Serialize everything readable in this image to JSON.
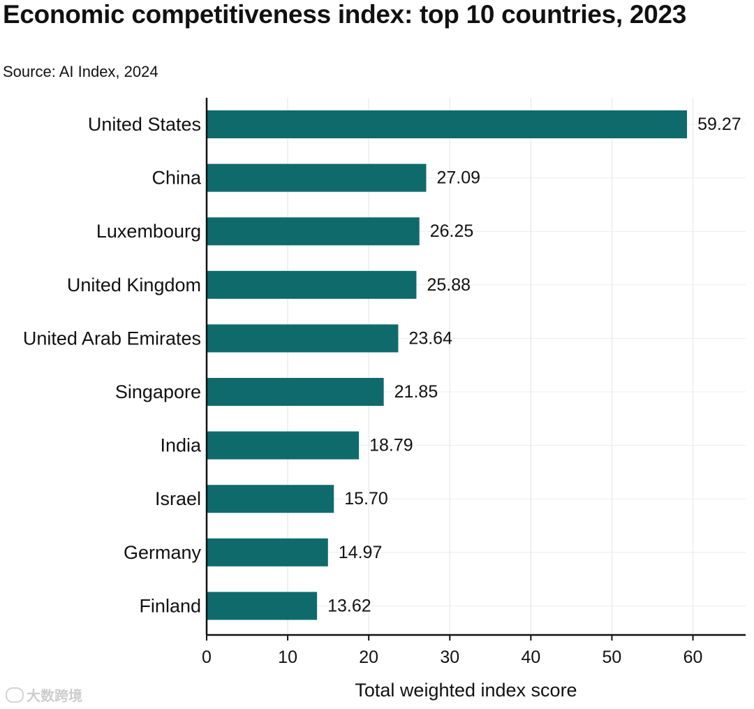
{
  "title": "Economic competitiveness index: top 10 countries, 2023",
  "subtitle": "Source: AI Index, 2024",
  "watermark": {
    "text": "大数跨境",
    "icon": "logo-icon"
  },
  "colors": {
    "bar": "#0f6b6b",
    "grid": "#ececec",
    "axis": "#111111"
  },
  "chart_data": {
    "type": "bar",
    "orientation": "horizontal",
    "categories": [
      "United States",
      "China",
      "Luxembourg",
      "United Kingdom",
      "United Arab Emirates",
      "Singapore",
      "India",
      "Israel",
      "Germany",
      "Finland"
    ],
    "values": [
      59.27,
      27.09,
      26.25,
      25.88,
      23.64,
      21.85,
      18.79,
      15.7,
      14.97,
      13.62
    ],
    "value_labels": [
      "59.27",
      "27.09",
      "26.25",
      "25.88",
      "23.64",
      "21.85",
      "18.79",
      "15.70",
      "14.97",
      "13.62"
    ],
    "xlabel": "Total weighted index score",
    "ylabel": "",
    "xlim": [
      0,
      66.5
    ],
    "xticks": [
      0,
      10,
      20,
      30,
      40,
      50,
      60
    ],
    "grid": true,
    "legend": "none"
  }
}
